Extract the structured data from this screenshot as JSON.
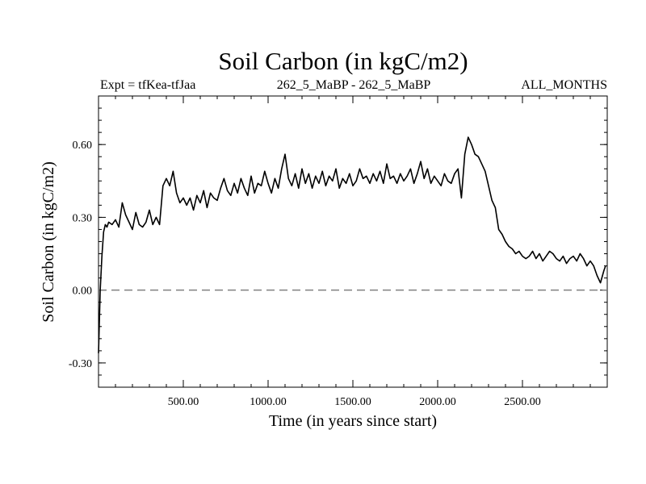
{
  "chart_data": {
    "type": "line",
    "title": "Soil Carbon (in kgC/m2)",
    "subtitle_left": "Expt = tfKea-tfJaa",
    "subtitle_center": "262_5_MaBP - 262_5_MaBP",
    "subtitle_right": "ALL_MONTHS",
    "xlabel": "Time (in years since start)",
    "ylabel": "Soil Carbon (in kgC/m2)",
    "xlim": [
      0,
      3000
    ],
    "ylim": [
      -0.4,
      0.8
    ],
    "x_ticks": [
      500,
      1000,
      1500,
      2000,
      2500
    ],
    "x_tick_labels": [
      "500.00",
      "1000.00",
      "1500.00",
      "2000.00",
      "2500.00"
    ],
    "y_ticks": [
      -0.3,
      0.0,
      0.3,
      0.6
    ],
    "y_tick_labels": [
      "-0.30",
      "0.00",
      "0.30",
      "0.60"
    ],
    "zero_line": true,
    "series": [
      {
        "color": "#000000",
        "x": [
          0,
          10,
          20,
          30,
          40,
          50,
          60,
          80,
          100,
          120,
          140,
          160,
          180,
          200,
          220,
          240,
          260,
          280,
          300,
          320,
          340,
          360,
          380,
          400,
          420,
          440,
          460,
          480,
          500,
          520,
          540,
          560,
          580,
          600,
          620,
          640,
          660,
          680,
          700,
          720,
          740,
          760,
          780,
          800,
          820,
          840,
          860,
          880,
          900,
          920,
          940,
          960,
          980,
          1000,
          1020,
          1040,
          1060,
          1080,
          1100,
          1120,
          1140,
          1160,
          1180,
          1200,
          1220,
          1240,
          1260,
          1280,
          1300,
          1320,
          1340,
          1360,
          1380,
          1400,
          1420,
          1440,
          1460,
          1480,
          1500,
          1520,
          1540,
          1560,
          1580,
          1600,
          1620,
          1640,
          1660,
          1680,
          1700,
          1720,
          1740,
          1760,
          1780,
          1800,
          1820,
          1840,
          1860,
          1880,
          1900,
          1920,
          1940,
          1960,
          1980,
          2000,
          2020,
          2040,
          2060,
          2080,
          2100,
          2120,
          2140,
          2160,
          2180,
          2200,
          2220,
          2240,
          2260,
          2280,
          2300,
          2320,
          2340,
          2360,
          2380,
          2400,
          2420,
          2440,
          2460,
          2480,
          2500,
          2520,
          2540,
          2560,
          2580,
          2600,
          2620,
          2640,
          2660,
          2680,
          2700,
          2720,
          2740,
          2760,
          2780,
          2800,
          2820,
          2840,
          2860,
          2880,
          2900,
          2920,
          2940,
          2960,
          2980,
          2990
        ],
        "values": [
          -0.26,
          0.0,
          0.14,
          0.24,
          0.27,
          0.26,
          0.28,
          0.27,
          0.29,
          0.26,
          0.36,
          0.31,
          0.28,
          0.25,
          0.32,
          0.27,
          0.26,
          0.28,
          0.33,
          0.27,
          0.3,
          0.27,
          0.43,
          0.46,
          0.43,
          0.49,
          0.4,
          0.36,
          0.38,
          0.35,
          0.38,
          0.33,
          0.39,
          0.36,
          0.41,
          0.34,
          0.4,
          0.38,
          0.37,
          0.42,
          0.46,
          0.41,
          0.39,
          0.44,
          0.4,
          0.46,
          0.42,
          0.39,
          0.47,
          0.4,
          0.44,
          0.43,
          0.49,
          0.44,
          0.4,
          0.46,
          0.42,
          0.5,
          0.56,
          0.46,
          0.43,
          0.48,
          0.42,
          0.5,
          0.44,
          0.48,
          0.42,
          0.47,
          0.44,
          0.49,
          0.43,
          0.47,
          0.45,
          0.5,
          0.42,
          0.46,
          0.44,
          0.48,
          0.43,
          0.45,
          0.5,
          0.46,
          0.47,
          0.44,
          0.48,
          0.45,
          0.49,
          0.44,
          0.52,
          0.46,
          0.47,
          0.44,
          0.48,
          0.45,
          0.47,
          0.5,
          0.44,
          0.48,
          0.53,
          0.46,
          0.5,
          0.44,
          0.47,
          0.45,
          0.43,
          0.48,
          0.45,
          0.44,
          0.48,
          0.5,
          0.38,
          0.56,
          0.63,
          0.6,
          0.56,
          0.55,
          0.52,
          0.49,
          0.43,
          0.37,
          0.34,
          0.25,
          0.23,
          0.2,
          0.18,
          0.17,
          0.15,
          0.16,
          0.14,
          0.13,
          0.14,
          0.16,
          0.13,
          0.15,
          0.12,
          0.14,
          0.16,
          0.15,
          0.13,
          0.12,
          0.14,
          0.11,
          0.13,
          0.14,
          0.12,
          0.15,
          0.13,
          0.1,
          0.12,
          0.1,
          0.06,
          0.03,
          0.08,
          0.1
        ]
      }
    ]
  }
}
